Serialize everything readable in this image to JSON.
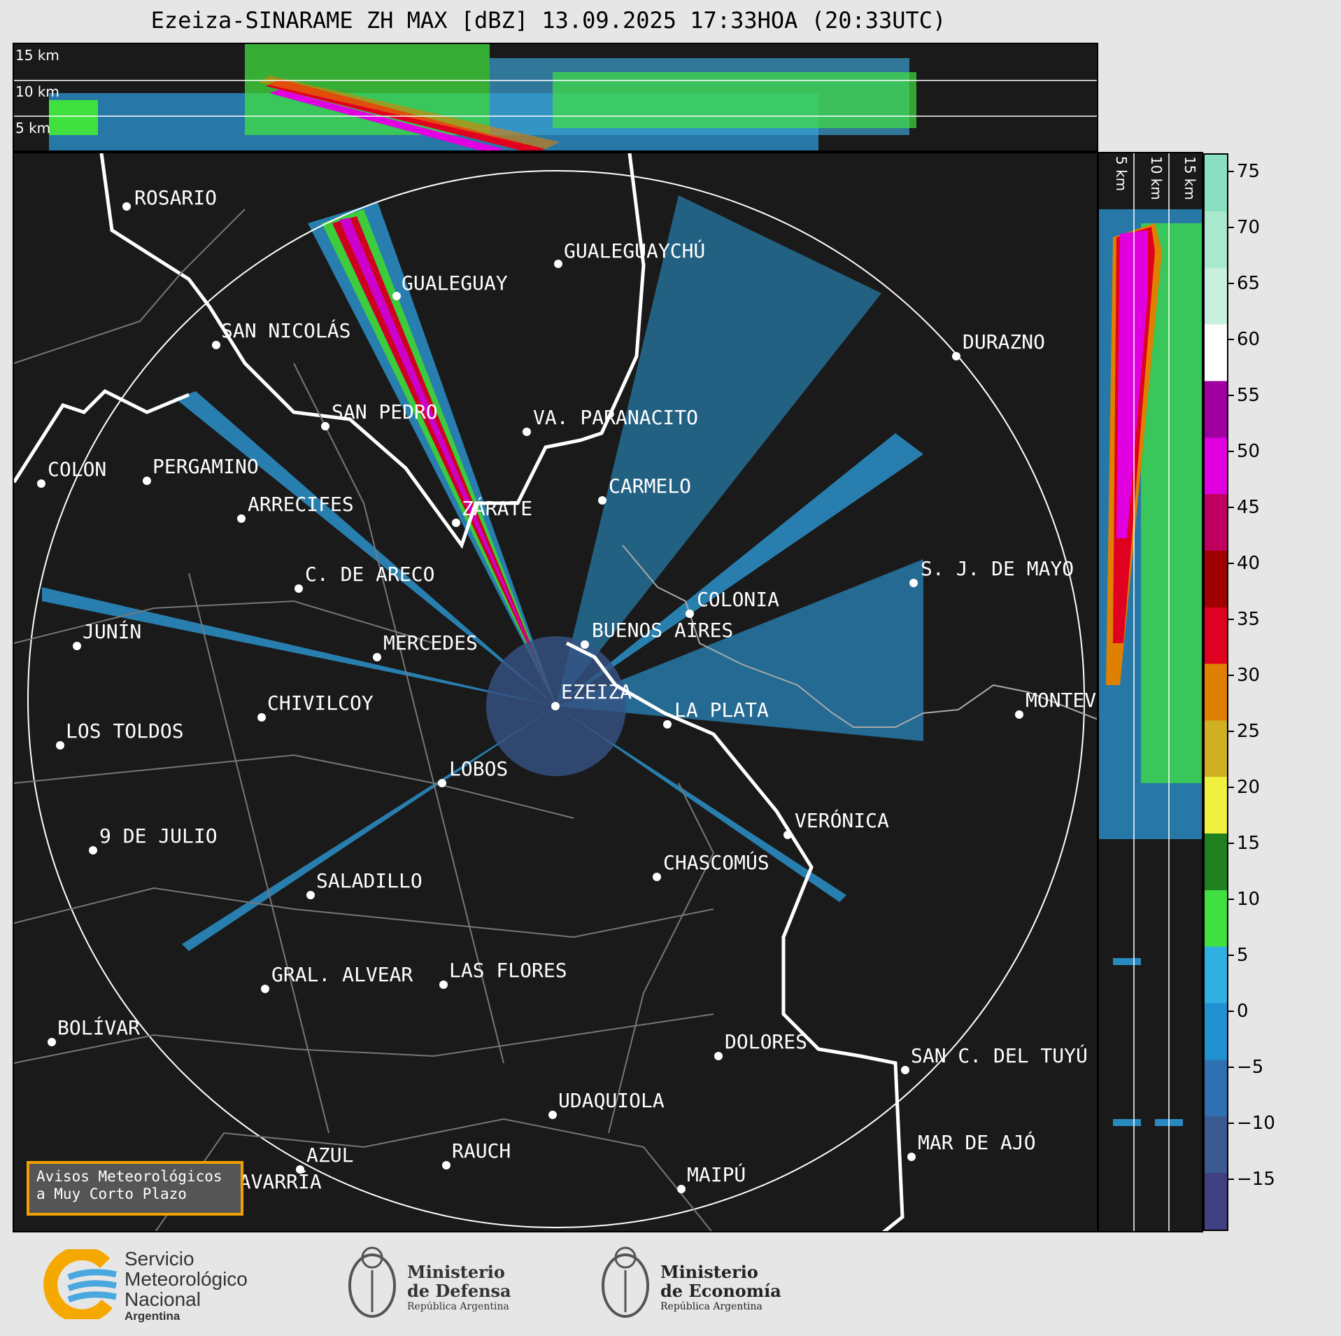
{
  "title": "Ezeiza-SINARAME ZH MAX [dBZ] 13.09.2025 17:33HOA (20:33UTC)",
  "top_panel": {
    "alt_labels": [
      "15 km",
      "10 km",
      "5 km"
    ]
  },
  "right_panel": {
    "alt_labels": [
      "5 km",
      "10 km",
      "15 km"
    ]
  },
  "colorbar": {
    "ticks": [
      "75",
      "70",
      "65",
      "60",
      "55",
      "50",
      "45",
      "40",
      "35",
      "30",
      "25",
      "20",
      "15",
      "10",
      "5",
      "0",
      "−5",
      "−10",
      "−15"
    ],
    "colors": [
      "#88e0c0",
      "#a8e8cc",
      "#c8f0dc",
      "#ffffff",
      "#a000a0",
      "#e000e0",
      "#c00060",
      "#a00000",
      "#e00020",
      "#e08000",
      "#d0b020",
      "#f0f040",
      "#208020",
      "#40e040",
      "#30b0e0",
      "#2090d0",
      "#3070b0",
      "#3a5a90",
      "#404080"
    ]
  },
  "cities": [
    {
      "name": "ROSARIO"
    },
    {
      "name": "GUALEGUAYCHÚ"
    },
    {
      "name": "GUALEGUAY"
    },
    {
      "name": "SAN NICOLÁS"
    },
    {
      "name": "DURAZNO"
    },
    {
      "name": "SAN PEDRO"
    },
    {
      "name": "VA. PARANACITO"
    },
    {
      "name": "COLON"
    },
    {
      "name": "PERGAMINO"
    },
    {
      "name": "CARMELO"
    },
    {
      "name": "ARRECIFES"
    },
    {
      "name": "ZÁRATE"
    },
    {
      "name": "S. J. DE MAYO"
    },
    {
      "name": "C. DE ARECO"
    },
    {
      "name": "COLONIA"
    },
    {
      "name": "JUNÍN"
    },
    {
      "name": "BUENOS AIRES"
    },
    {
      "name": "MERCEDES"
    },
    {
      "name": "EZEIZA"
    },
    {
      "name": "MONTEVIDEO"
    },
    {
      "name": "CHIVILCOY"
    },
    {
      "name": "LA PLATA"
    },
    {
      "name": "LOS TOLDOS"
    },
    {
      "name": "LOBOS"
    },
    {
      "name": "VERÓNICA"
    },
    {
      "name": "9 DE JULIO"
    },
    {
      "name": "CHASCOMÚS"
    },
    {
      "name": "SALADILLO"
    },
    {
      "name": "GRAL. ALVEAR"
    },
    {
      "name": "LAS FLORES"
    },
    {
      "name": "BOLÍVAR"
    },
    {
      "name": "DOLORES"
    },
    {
      "name": "SAN C. DEL TUYÚ"
    },
    {
      "name": "UDAQUIOLA"
    },
    {
      "name": "AZUL"
    },
    {
      "name": "RAUCH"
    },
    {
      "name": "MAR DE AJÓ"
    },
    {
      "name": "MAIPÚ"
    },
    {
      "name": "OLAVARRÍA"
    }
  ],
  "avisos": {
    "line1": "Avisos Meteorológicos",
    "line2": "a Muy Corto Plazo"
  },
  "logos": {
    "smn": {
      "line1": "Servicio",
      "line2": "Meteorológico",
      "line3": "Nacional",
      "line4": "Argentina"
    },
    "defensa": {
      "line1": "Ministerio",
      "line2": "de Defensa",
      "line3": "República Argentina"
    },
    "economia": {
      "line1": "Ministerio",
      "line2": "de Economía",
      "line3": "República Argentina"
    }
  }
}
